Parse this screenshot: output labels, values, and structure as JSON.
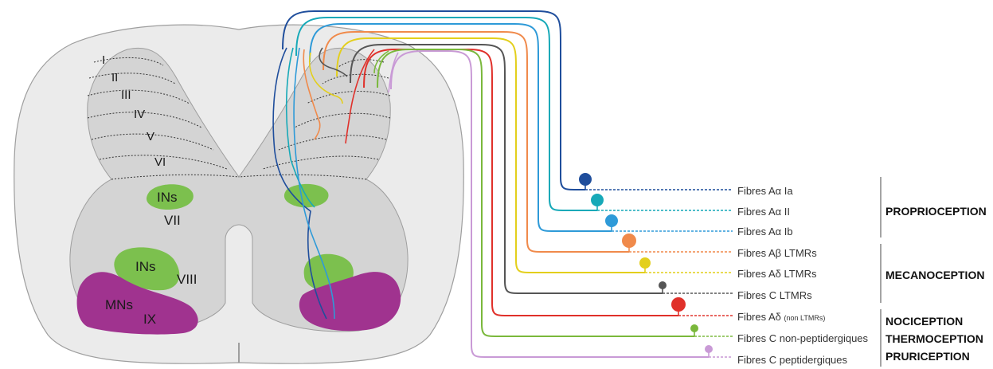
{
  "laminae": [
    "I",
    "II",
    "III",
    "IV",
    "V",
    "VI"
  ],
  "regions": {
    "vii": "VII",
    "viii": "VIII",
    "ix": "IX",
    "ins_vii": "INs",
    "ins_viii": "INs",
    "mns": "MNs"
  },
  "fibers": [
    {
      "label": "Fibres Aα Ia",
      "sub": "",
      "color": "#1f4e9c"
    },
    {
      "label": "Fibres Aα II",
      "sub": "",
      "color": "#17a9b8"
    },
    {
      "label": "Fibres Aα Ib",
      "sub": "",
      "color": "#2e9ad8"
    },
    {
      "label": "Fibres Aβ LTMRs",
      "sub": "",
      "color": "#f08a4b"
    },
    {
      "label": "Fibres Aδ LTMRs",
      "sub": "",
      "color": "#e3cf1c"
    },
    {
      "label": "Fibres C LTMRs",
      "sub": "",
      "color": "#555555"
    },
    {
      "label": "Fibres Aδ ",
      "sub": "(non LTMRs)",
      "color": "#e0302a"
    },
    {
      "label": "Fibres C non-peptidergiques",
      "sub": "",
      "color": "#7ab83b"
    },
    {
      "label": "Fibres C peptidergiques",
      "sub": "",
      "color": "#c99ad6"
    }
  ],
  "categories": [
    "PROPRIOCEPTION",
    "MECANOCEPTION",
    "NOCICEPTION",
    "THERMOCEPTION",
    "PRURICEPTION"
  ],
  "colors": {
    "white_matter": "#ebebeb",
    "grey_matter": "#d4d4d4",
    "interneurons": "#7cc04e",
    "motoneurons": "#a0338f"
  }
}
